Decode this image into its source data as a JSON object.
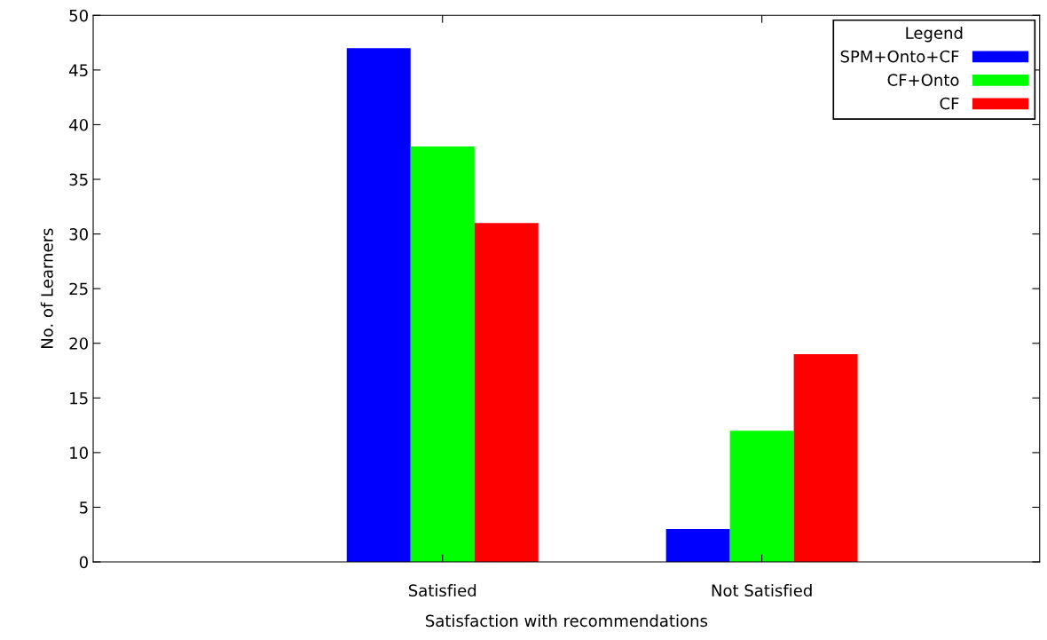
{
  "chart_data": {
    "type": "bar",
    "xlabel": "Satisfaction with recommendations",
    "ylabel": "No. of Learners",
    "categories": [
      "Satisfied",
      "Not Satisfied"
    ],
    "series": [
      {
        "name": "SPM+Onto+CF",
        "color": "#0000ff",
        "values": [
          47,
          3
        ]
      },
      {
        "name": "CF+Onto",
        "color": "#00ff00",
        "values": [
          38,
          12
        ]
      },
      {
        "name": "CF",
        "color": "#ff0000",
        "values": [
          31,
          19
        ]
      }
    ],
    "ylim": [
      0,
      50
    ],
    "yticks": [
      0,
      5,
      10,
      15,
      20,
      25,
      30,
      35,
      40,
      45,
      50
    ],
    "legend": "top right",
    "legend_title": "Legend",
    "grid": false
  }
}
